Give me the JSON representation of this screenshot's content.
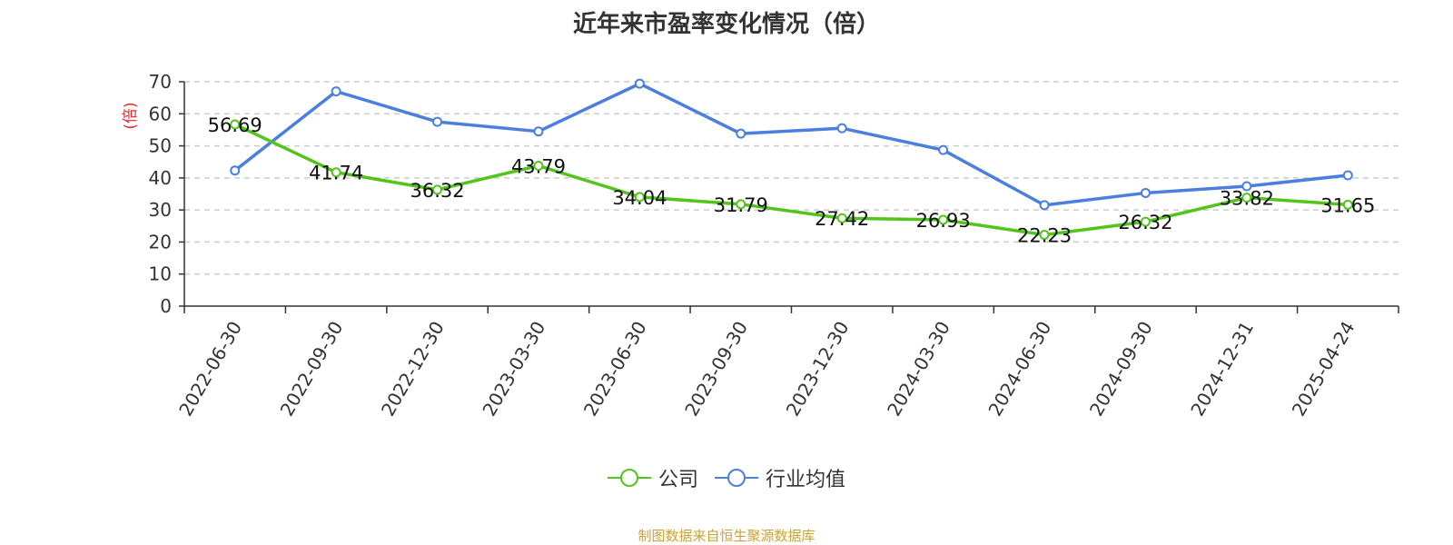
{
  "title": "近年来市盈率变化情况（倍）",
  "source": "制图数据来自恒生聚源数据库",
  "chart_data": {
    "type": "line",
    "title": "近年来市盈率变化情况（倍）",
    "ylabel": "(倍)",
    "xlabel": "",
    "ylim": [
      0,
      70
    ],
    "yticks": [
      0,
      10,
      20,
      30,
      40,
      50,
      60,
      70
    ],
    "grid": true,
    "legend_position": "bottom",
    "categories": [
      "2022-06-30",
      "2022-09-30",
      "2022-12-30",
      "2023-03-30",
      "2023-06-30",
      "2023-09-30",
      "2023-12-30",
      "2024-03-30",
      "2024-06-30",
      "2024-09-30",
      "2024-12-31",
      "2025-04-24"
    ],
    "series": [
      {
        "name": "公司",
        "color": "#52c41a",
        "show_labels": true,
        "values": [
          56.69,
          41.74,
          36.32,
          43.79,
          34.04,
          31.79,
          27.42,
          26.93,
          22.23,
          26.32,
          33.82,
          31.65
        ]
      },
      {
        "name": "行业均值",
        "color": "#4a7fe0",
        "show_labels": false,
        "values": [
          42.3,
          67.0,
          57.5,
          54.5,
          69.4,
          53.8,
          55.5,
          48.7,
          31.5,
          35.3,
          37.4,
          40.8
        ]
      }
    ]
  }
}
